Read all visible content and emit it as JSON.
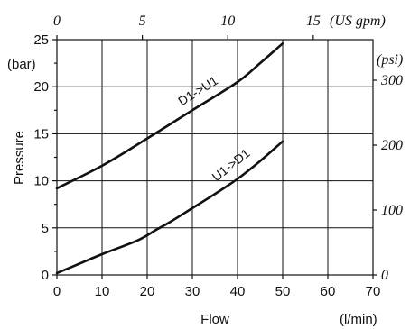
{
  "chart_data": {
    "type": "line",
    "xlabel": "Flow",
    "x_unit": "(l/min)",
    "ylabel": "Pressure",
    "y_unit": "(bar)",
    "xlim": [
      0,
      70
    ],
    "ylim": [
      0,
      25
    ],
    "x_ticks": [
      0,
      10,
      20,
      30,
      40,
      50,
      60,
      70
    ],
    "y_ticks": [
      0,
      5,
      10,
      15,
      20,
      25
    ],
    "grid": true,
    "secondary_x": {
      "unit": "(US gpm)",
      "ticks": [
        0,
        5,
        10,
        15
      ],
      "conversion": 3.785
    },
    "secondary_y": {
      "unit": "(psi)",
      "ticks": [
        0,
        100,
        200,
        300
      ],
      "conversion": 14.5
    },
    "series": [
      {
        "name": "D1->U1",
        "x": [
          0,
          10,
          20,
          30,
          40,
          45,
          50
        ],
        "y": [
          9.2,
          11.6,
          14.5,
          17.5,
          20.5,
          22.5,
          24.6
        ]
      },
      {
        "name": "U1->D1",
        "x": [
          0,
          5,
          10,
          18,
          22,
          25,
          30,
          35,
          40,
          45,
          50
        ],
        "y": [
          0.2,
          1.2,
          2.2,
          3.7,
          4.8,
          5.6,
          7.1,
          8.6,
          10.2,
          12.1,
          14.2
        ]
      }
    ]
  }
}
